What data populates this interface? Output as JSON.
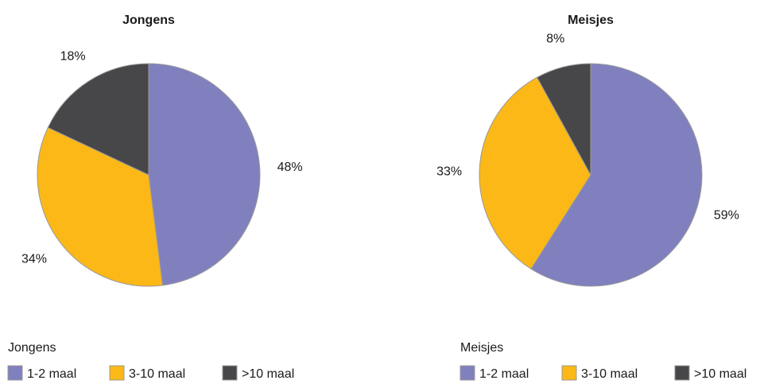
{
  "chart_data": [
    {
      "type": "pie",
      "title": "Jongens",
      "legend_heading": "Jongens",
      "categories": [
        "1-2 maal",
        "3-10 maal",
        ">10 maal"
      ],
      "values": [
        48,
        34,
        18
      ],
      "data_labels": [
        "48%",
        "34%",
        "18%"
      ],
      "colors": [
        "#8080bf",
        "#fbb817",
        "#47474a"
      ],
      "legend": "bottom"
    },
    {
      "type": "pie",
      "title": "Meisjes",
      "legend_heading": "Meisjes",
      "categories": [
        "1-2 maal",
        "3-10 maal",
        ">10 maal"
      ],
      "values": [
        59,
        33,
        8
      ],
      "data_labels": [
        "59%",
        "33%",
        "8%"
      ],
      "colors": [
        "#8080bf",
        "#fbb817",
        "#47474a"
      ],
      "legend": "bottom"
    }
  ]
}
